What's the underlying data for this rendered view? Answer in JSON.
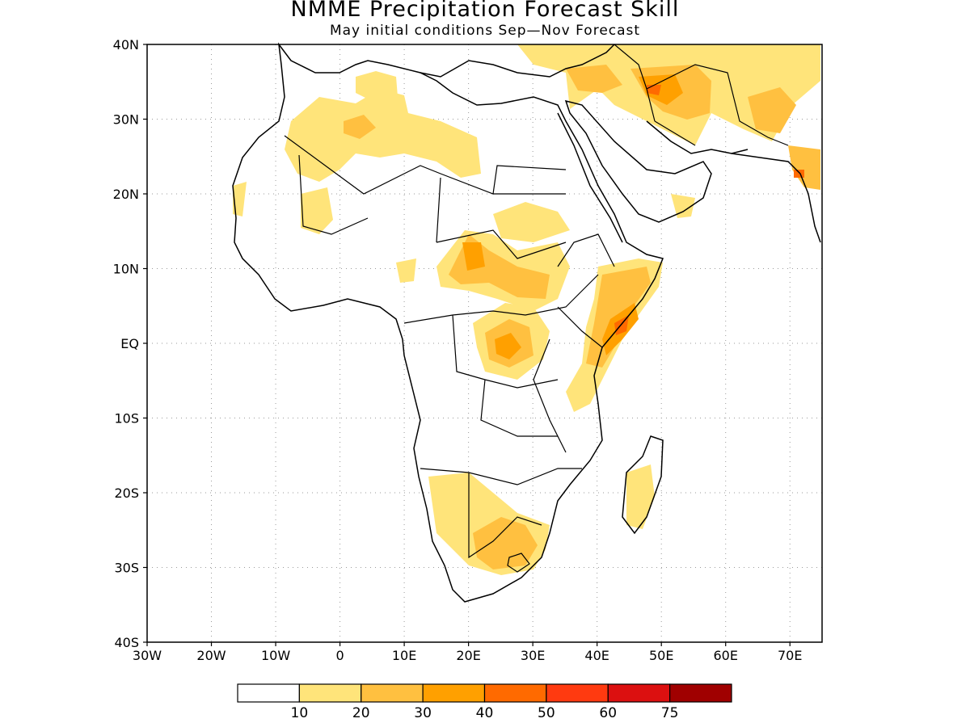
{
  "title": "NMME Precipitation Forecast Skill",
  "subtitle": "May initial conditions  Sep—Nov Forecast",
  "map": {
    "lon_range": [
      -30,
      75
    ],
    "lat_range": [
      -40,
      40
    ],
    "lon_ticks": [
      {
        "value": -30,
        "label": "30W"
      },
      {
        "value": -20,
        "label": "20W"
      },
      {
        "value": -10,
        "label": "10W"
      },
      {
        "value": 0,
        "label": "0"
      },
      {
        "value": 10,
        "label": "10E"
      },
      {
        "value": 20,
        "label": "20E"
      },
      {
        "value": 30,
        "label": "30E"
      },
      {
        "value": 40,
        "label": "40E"
      },
      {
        "value": 50,
        "label": "50E"
      },
      {
        "value": 60,
        "label": "60E"
      },
      {
        "value": 70,
        "label": "70E"
      }
    ],
    "lat_ticks": [
      {
        "value": 40,
        "label": "40N"
      },
      {
        "value": 30,
        "label": "30N"
      },
      {
        "value": 20,
        "label": "20N"
      },
      {
        "value": 10,
        "label": "10N"
      },
      {
        "value": 0,
        "label": "EQ"
      },
      {
        "value": -10,
        "label": "10S"
      },
      {
        "value": -20,
        "label": "20S"
      },
      {
        "value": -30,
        "label": "30S"
      },
      {
        "value": -40,
        "label": "40S"
      }
    ],
    "grid": true
  },
  "colorbar": {
    "labels": [
      "10",
      "20",
      "30",
      "40",
      "50",
      "60",
      "75"
    ],
    "colors": [
      "#ffffff",
      "#ffe47a",
      "#ffc040",
      "#ffa000",
      "#ff6a00",
      "#ff3a10",
      "#dc1010",
      "#a00000"
    ]
  }
}
